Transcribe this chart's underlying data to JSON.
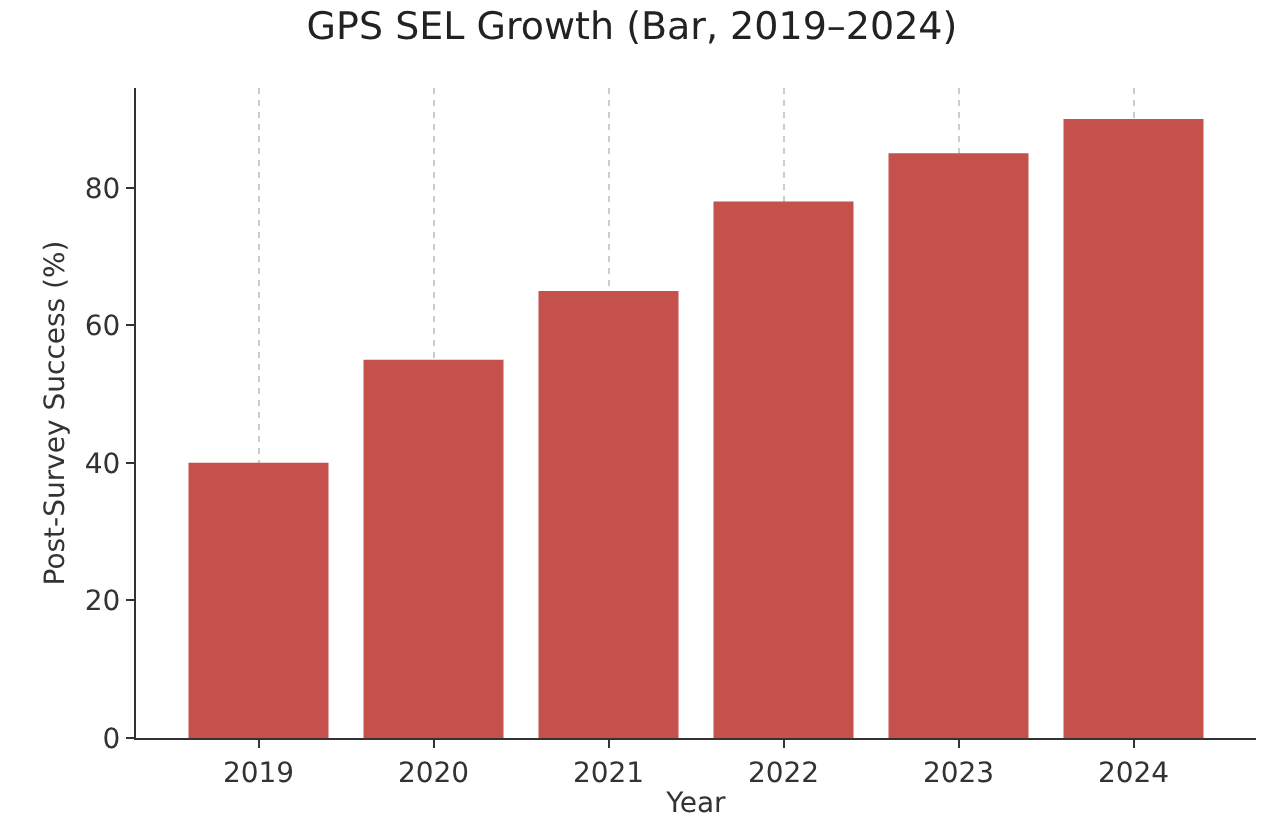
{
  "chart_data": {
    "type": "bar",
    "title": "GPS SEL Growth (Bar, 2019–2024)",
    "xlabel": "Year",
    "ylabel": "Post-Survey Success (%)",
    "categories": [
      "2019",
      "2020",
      "2021",
      "2022",
      "2023",
      "2024"
    ],
    "values": [
      40,
      55,
      65,
      78,
      85,
      90
    ],
    "color": "#c5514c",
    "ylim": [
      0,
      94.5
    ],
    "yticks": [
      0,
      20,
      40,
      60,
      80
    ],
    "grid": "x"
  }
}
